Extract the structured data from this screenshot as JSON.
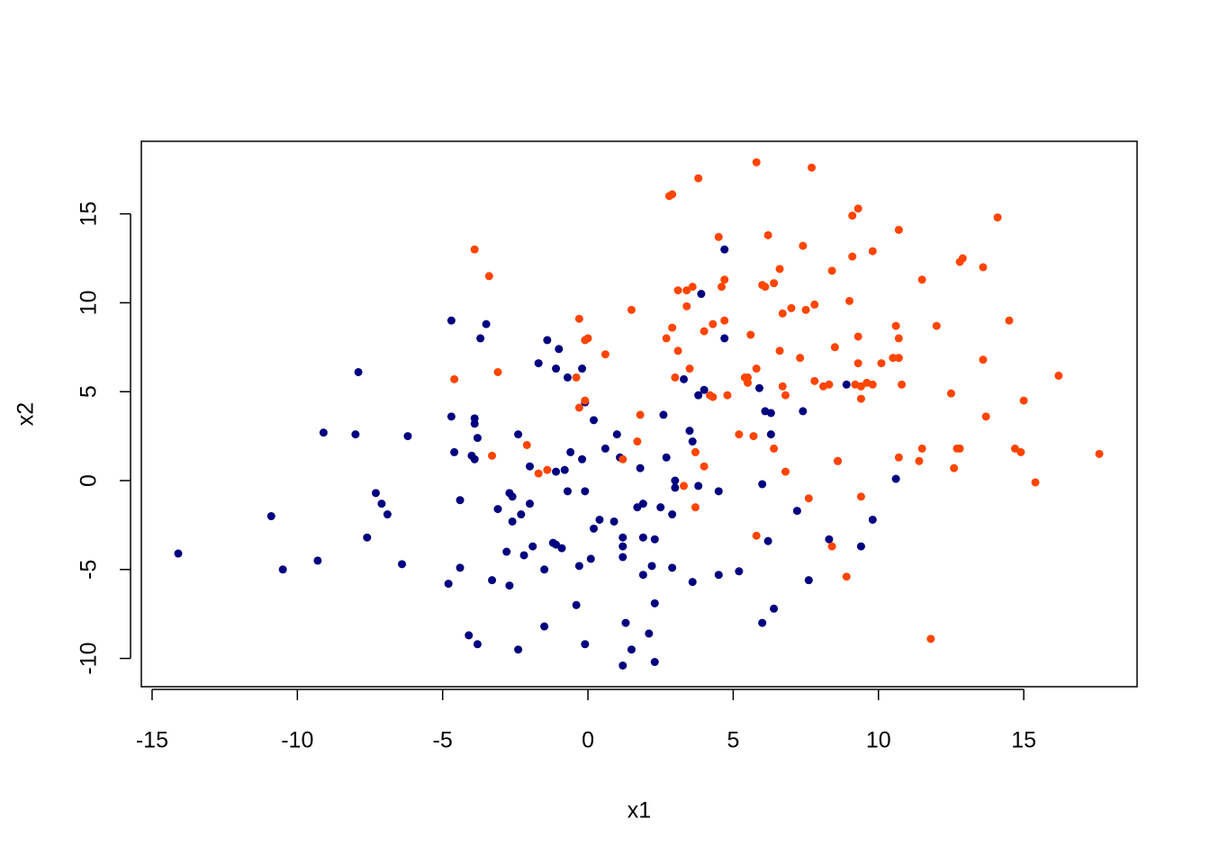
{
  "chart_data": {
    "type": "scatter",
    "x_label": "x1",
    "y_label": "x2",
    "xlim": [
      -15.37,
      18.9
    ],
    "ylim": [
      -11.59,
      19.08
    ],
    "xticks": [
      -15,
      -10,
      -5,
      0,
      5,
      10,
      15
    ],
    "yticks": [
      -10,
      -5,
      0,
      5,
      10,
      15
    ],
    "grid": false,
    "series": [
      {
        "color": "#00007f",
        "x": [
          -14.1,
          -10.9,
          -10.5,
          -9.3,
          -9.1,
          -8.0,
          -7.9,
          -7.6,
          -7.3,
          -7.1,
          -6.9,
          -6.4,
          -6.2,
          -4.8,
          -4.7,
          -4.7,
          -4.6,
          -4.4,
          -4.4,
          -4.1,
          -4.0,
          -3.9,
          -3.9,
          -3.9,
          -3.8,
          -3.8,
          -3.7,
          -3.5,
          -3.3,
          -3.1,
          -2.8,
          -2.7,
          -2.7,
          -2.6,
          -2.6,
          -2.4,
          -2.4,
          -2.3,
          -2.2,
          -2.0,
          -2.0,
          -1.9,
          -1.7,
          -1.5,
          -1.5,
          -1.4,
          -1.2,
          -1.1,
          -1.1,
          -1.1,
          -1.0,
          -0.9,
          -0.8,
          -0.7,
          -0.7,
          -0.6,
          -0.4,
          -0.3,
          -0.2,
          -0.2,
          -0.1,
          -0.1,
          -0.1,
          0.1,
          0.2,
          0.2,
          0.4,
          0.6,
          0.9,
          1.0,
          1.1,
          1.2,
          1.2,
          1.2,
          1.2,
          1.3,
          1.5,
          1.7,
          1.8,
          1.9,
          1.9,
          1.9,
          2.1,
          2.2,
          2.3,
          2.3,
          2.3,
          2.5,
          2.6,
          2.7,
          2.9,
          2.9,
          3.0,
          3.0,
          3.3,
          3.5,
          3.6,
          3.6,
          3.8,
          3.8,
          3.9,
          4.0,
          4.5,
          4.5,
          4.7,
          4.7,
          5.2,
          5.9,
          6.0,
          6.0,
          6.1,
          6.2,
          6.3,
          6.3,
          6.4,
          7.2,
          7.4,
          7.6,
          8.3,
          8.6,
          8.9,
          9.4,
          9.8,
          10.6
        ],
        "values": [
          -4.1,
          -2.0,
          -5.0,
          -4.5,
          2.7,
          2.6,
          6.1,
          -3.2,
          -0.7,
          -1.3,
          -1.9,
          -4.7,
          2.5,
          -5.8,
          3.6,
          9.0,
          1.6,
          -4.9,
          -1.1,
          -8.7,
          1.4,
          1.2,
          3.2,
          3.5,
          -9.2,
          2.4,
          8.0,
          8.8,
          -5.6,
          -1.6,
          -4.0,
          -5.9,
          -0.7,
          -2.3,
          -0.9,
          2.6,
          -9.5,
          -1.9,
          -4.2,
          0.8,
          -1.3,
          -3.7,
          6.6,
          -8.2,
          -5.0,
          7.9,
          -3.5,
          -3.6,
          0.5,
          6.3,
          7.4,
          -3.8,
          0.6,
          -0.6,
          5.8,
          1.6,
          -7.0,
          -4.8,
          6.3,
          1.2,
          -0.6,
          4.4,
          -9.2,
          -4.4,
          -2.7,
          3.4,
          -2.2,
          1.8,
          -2.3,
          2.6,
          1.3,
          -3.2,
          -3.7,
          -10.4,
          -4.3,
          -8.0,
          -9.5,
          -1.5,
          0.7,
          -3.2,
          -1.3,
          -5.3,
          -8.6,
          -4.8,
          -10.2,
          -6.9,
          -3.3,
          -1.5,
          3.7,
          1.3,
          -1.9,
          -4.9,
          0.0,
          -0.4,
          5.7,
          2.8,
          -5.7,
          2.2,
          4.8,
          -0.3,
          10.5,
          5.1,
          -0.6,
          -5.3,
          13.0,
          8.0,
          -5.1,
          5.2,
          -8.0,
          -0.2,
          3.9,
          -3.4,
          3.8,
          2.6,
          -7.2,
          -1.7,
          3.9,
          -5.6,
          -3.3,
          1.1,
          5.4,
          -3.7,
          -2.2,
          0.1
        ]
      },
      {
        "color": "#ff4500",
        "x": [
          -3.9,
          -3.4,
          -4.6,
          -3.1,
          -3.3,
          -2.1,
          -1.7,
          -1.4,
          -0.3,
          -0.4,
          -0.3,
          -0.1,
          0.0,
          -0.1,
          0.6,
          1.2,
          1.5,
          1.7,
          1.8,
          2.7,
          2.8,
          2.9,
          2.9,
          3.0,
          3.1,
          3.1,
          3.4,
          3.4,
          3.3,
          3.6,
          3.5,
          3.7,
          3.7,
          3.8,
          4.0,
          4.0,
          4.2,
          4.3,
          4.3,
          4.5,
          4.6,
          4.7,
          4.7,
          4.8,
          5.2,
          5.4,
          5.5,
          5.5,
          5.6,
          5.7,
          5.8,
          5.8,
          5.8,
          6.0,
          6.1,
          6.2,
          6.4,
          6.4,
          6.6,
          6.6,
          6.7,
          6.7,
          6.8,
          6.8,
          7.0,
          7.3,
          7.4,
          7.5,
          7.6,
          7.7,
          7.8,
          7.8,
          8.1,
          8.3,
          8.4,
          8.4,
          8.5,
          8.6,
          8.9,
          9.0,
          9.1,
          9.1,
          9.2,
          9.3,
          9.3,
          9.3,
          9.4,
          9.4,
          9.4,
          9.6,
          9.8,
          9.8,
          10.1,
          10.5,
          10.6,
          10.7,
          10.7,
          10.7,
          10.7,
          10.8,
          11.5,
          11.4,
          11.5,
          11.8,
          12.0,
          12.5,
          12.6,
          12.7,
          12.8,
          12.8,
          12.9,
          13.6,
          13.6,
          13.7,
          14.1,
          14.5,
          14.7,
          14.9,
          15.0,
          15.4,
          16.2,
          17.6
        ],
        "values": [
          13.0,
          11.5,
          5.7,
          6.1,
          1.4,
          2.0,
          0.4,
          0.6,
          9.1,
          5.8,
          4.1,
          7.9,
          8.0,
          4.5,
          7.1,
          1.2,
          9.6,
          2.2,
          3.7,
          8.0,
          16.0,
          16.1,
          8.6,
          5.8,
          10.7,
          7.3,
          9.8,
          10.7,
          -0.3,
          10.9,
          6.3,
          1.6,
          -1.5,
          17.0,
          8.4,
          0.8,
          4.8,
          4.7,
          8.8,
          13.7,
          10.9,
          9.0,
          11.3,
          4.8,
          2.6,
          5.8,
          5.5,
          5.8,
          8.2,
          2.5,
          17.9,
          6.3,
          -3.1,
          11.0,
          10.9,
          13.8,
          1.8,
          11.1,
          7.3,
          11.9,
          9.4,
          5.3,
          4.8,
          0.5,
          9.7,
          6.9,
          13.2,
          9.6,
          -1.0,
          17.6,
          9.9,
          5.6,
          5.3,
          5.4,
          -3.7,
          11.8,
          7.5,
          1.1,
          -5.4,
          10.1,
          14.9,
          12.6,
          5.4,
          6.6,
          8.1,
          15.3,
          5.3,
          4.6,
          -0.9,
          5.5,
          5.4,
          12.9,
          6.6,
          6.9,
          8.7,
          1.3,
          8.0,
          6.9,
          14.1,
          5.4,
          11.3,
          1.1,
          1.8,
          -8.9,
          8.7,
          4.9,
          0.7,
          1.8,
          1.8,
          12.3,
          12.5,
          6.8,
          12.0,
          3.6,
          14.8,
          9.0,
          1.8,
          1.6,
          4.5,
          -0.1,
          5.9,
          1.5
        ]
      }
    ]
  }
}
